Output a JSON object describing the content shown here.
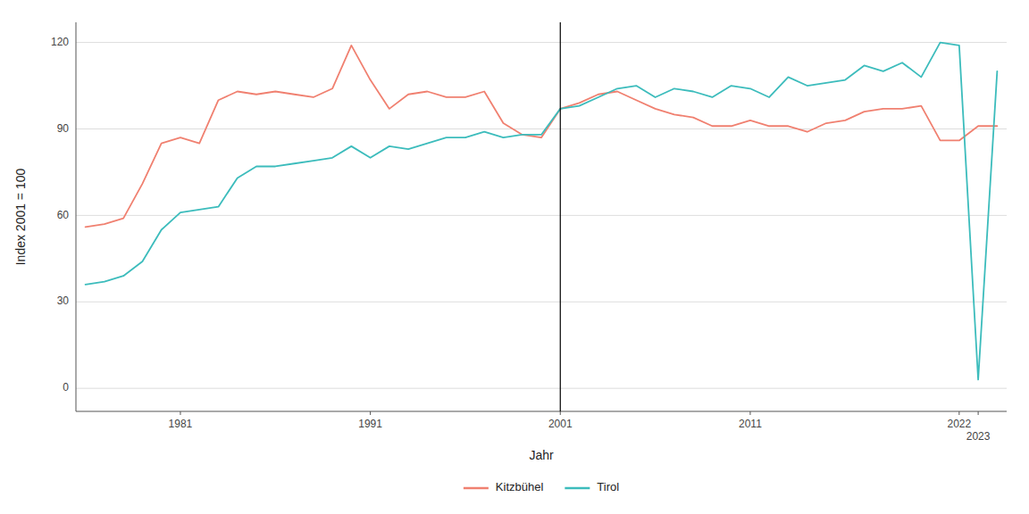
{
  "chart_data": {
    "type": "line",
    "xlabel": "Jahr",
    "ylabel": "Index 2001 = 100",
    "x": [
      1976,
      1977,
      1978,
      1979,
      1980,
      1981,
      1982,
      1983,
      1984,
      1985,
      1986,
      1987,
      1988,
      1989,
      1990,
      1991,
      1992,
      1993,
      1994,
      1995,
      1996,
      1997,
      1998,
      1999,
      2000,
      2001,
      2002,
      2003,
      2004,
      2005,
      2006,
      2007,
      2008,
      2009,
      2010,
      2011,
      2012,
      2013,
      2014,
      2015,
      2016,
      2017,
      2018,
      2019,
      2020,
      2021,
      2022,
      2023,
      2024
    ],
    "series": [
      {
        "name": "Kitzbühel",
        "color": "#F08070",
        "values": [
          56,
          57,
          59,
          71,
          85,
          87,
          85,
          100,
          103,
          102,
          103,
          102,
          101,
          104,
          119,
          107,
          97,
          102,
          103,
          101,
          101,
          103,
          92,
          88,
          87,
          97,
          99,
          102,
          103,
          100,
          97,
          95,
          94,
          91,
          91,
          93,
          91,
          91,
          89,
          92,
          93,
          96,
          97,
          97,
          98,
          86,
          86,
          91,
          91
        ]
      },
      {
        "name": "Tirol",
        "color": "#3CBCBC",
        "values": [
          36,
          37,
          39,
          44,
          55,
          61,
          62,
          63,
          73,
          77,
          77,
          78,
          79,
          80,
          84,
          80,
          84,
          83,
          85,
          87,
          87,
          89,
          87,
          88,
          88,
          97,
          98,
          101,
          104,
          105,
          101,
          104,
          103,
          101,
          105,
          104,
          101,
          108,
          105,
          106,
          107,
          112,
          110,
          113,
          108,
          120,
          119,
          3,
          110
        ]
      }
    ],
    "annotations": [
      {
        "x": 2001
      }
    ],
    "xlim": [
      1975.5,
      2024.5
    ],
    "ylim": [
      -8,
      127
    ],
    "xticks": [
      1981,
      1991,
      2001,
      2011,
      2022,
      2023
    ],
    "yticks": [
      0,
      30,
      60,
      90,
      120
    ],
    "grid": true,
    "legend": "bottom"
  }
}
